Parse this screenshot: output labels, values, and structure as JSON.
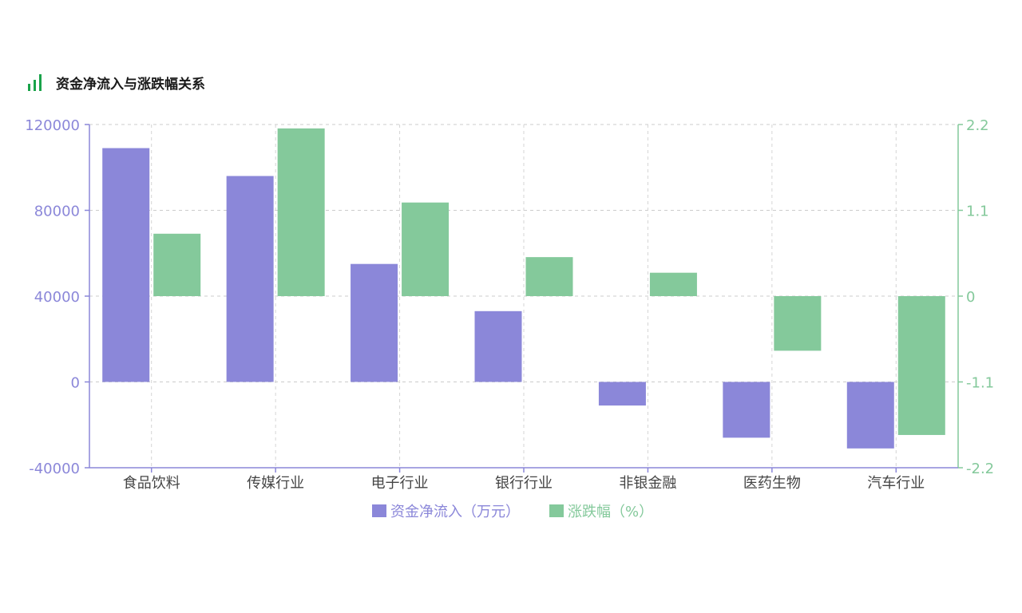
{
  "header": {
    "title": "资金净流入与涨跌幅关系",
    "icon": "bar-chart-icon",
    "icon_color": "#1aa34a"
  },
  "chart_data": {
    "type": "bar",
    "categories": [
      "食品饮料",
      "传媒行业",
      "电子行业",
      "银行行业",
      "非银金融",
      "医药生物",
      "汽车行业"
    ],
    "series": [
      {
        "name": "资金净流入（万元）",
        "axis": "left",
        "color": "#8b87d9",
        "values": [
          109000,
          96000,
          55000,
          33000,
          -11000,
          -26000,
          -31000
        ]
      },
      {
        "name": "涨跌幅（%）",
        "axis": "right",
        "color": "#84c99b",
        "values": [
          0.8,
          2.15,
          1.2,
          0.5,
          0.3,
          -0.7,
          -1.78
        ]
      }
    ],
    "y_left": {
      "ticks": [
        "120000",
        "80000",
        "40000",
        "0",
        "-40000"
      ],
      "range": [
        -40000,
        120000
      ],
      "color": "#8b87d9"
    },
    "y_right": {
      "ticks": [
        "2.2",
        "1.1",
        "0",
        "-1.1",
        "-2.2"
      ],
      "range": [
        -2.2,
        2.2
      ],
      "color": "#84c99b"
    },
    "grid": true,
    "legend_position": "bottom"
  }
}
